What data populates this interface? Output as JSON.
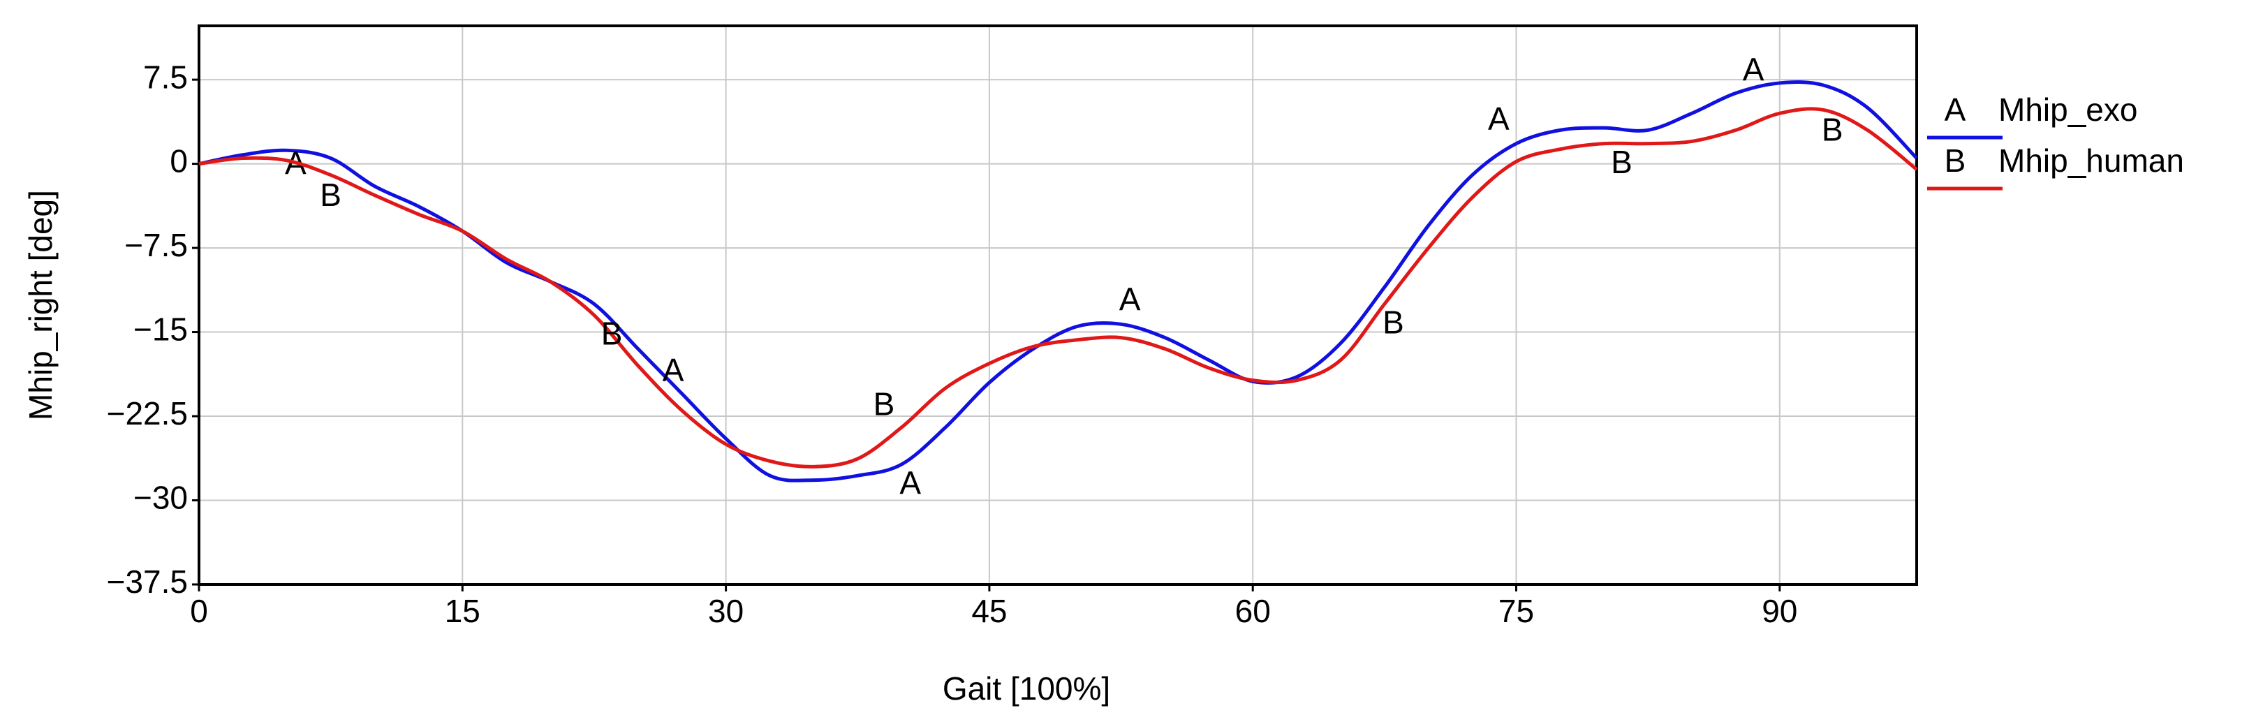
{
  "chart_data": {
    "type": "line",
    "x_label": "Gait [100%]",
    "y_label": "Mhip_right [deg]",
    "x": [
      0,
      2.5,
      5,
      7.5,
      10,
      12.5,
      15,
      17.5,
      20,
      22.5,
      25,
      27.5,
      30,
      32.5,
      35,
      37.5,
      40,
      42.5,
      45,
      47.5,
      50,
      52.5,
      55,
      57.5,
      60,
      62.5,
      65,
      67.5,
      70,
      72.5,
      75,
      77.5,
      80,
      82.5,
      85,
      87.5,
      90,
      92.5,
      95,
      97.8
    ],
    "series": [
      {
        "name": "Mhip_exo",
        "marker": "A",
        "color": "#1010e0",
        "values": [
          0,
          0.8,
          1.2,
          0.5,
          -2,
          -3.8,
          -6,
          -8.8,
          -10.5,
          -12.5,
          -16.5,
          -20.5,
          -24.5,
          -27.8,
          -28.2,
          -27.8,
          -26.8,
          -23.5,
          -19.5,
          -16.5,
          -14.5,
          -14.3,
          -15.5,
          -17.5,
          -19.4,
          -19,
          -16,
          -11,
          -5.5,
          -1,
          1.8,
          3,
          3.2,
          3,
          4.5,
          6.3,
          7.2,
          7,
          5,
          0.5
        ]
      },
      {
        "name": "Mhip_human",
        "marker": "B",
        "color": "#e01818",
        "values": [
          0,
          0.5,
          0.3,
          -1,
          -2.8,
          -4.5,
          -6,
          -8.5,
          -10.5,
          -13.5,
          -18,
          -22,
          -25,
          -26.5,
          -27,
          -26.3,
          -23.5,
          -20,
          -17.8,
          -16.3,
          -15.7,
          -15.5,
          -16.5,
          -18.2,
          -19.3,
          -19.3,
          -17.5,
          -12.5,
          -7.5,
          -3,
          0.2,
          1.3,
          1.8,
          1.8,
          2,
          3,
          4.5,
          4.8,
          3,
          -0.5
        ]
      }
    ],
    "xlim": [
      0,
      97.8
    ],
    "ylim": [
      -37.5,
      12.3
    ],
    "xticks": [
      0,
      15,
      30,
      45,
      60,
      75,
      90
    ],
    "yticks": [
      {
        "value": -37.5,
        "label": "−37.5"
      },
      {
        "value": -30,
        "label": "−30"
      },
      {
        "value": -22.5,
        "label": "−22.5"
      },
      {
        "value": -15,
        "label": "−15"
      },
      {
        "value": -7.5,
        "label": "−7.5"
      },
      0,
      7.5
    ],
    "grid": true
  }
}
